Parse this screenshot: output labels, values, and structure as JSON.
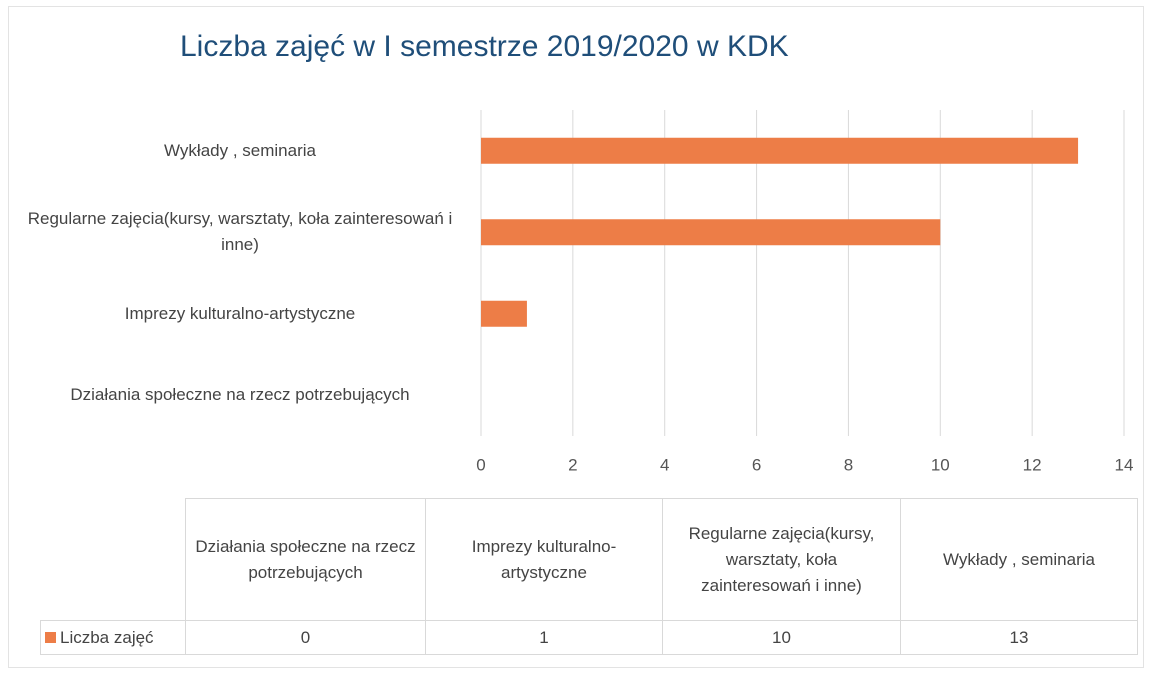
{
  "chart_data": {
    "type": "bar",
    "orientation": "horizontal",
    "title": "Liczba zajęć w I semestrze 2019/2020 w KDK",
    "categories": [
      "Działania społeczne na rzecz potrzebujących",
      "Imprezy kulturalno-artystyczne",
      "Regularne zajęcia(kursy, warsztaty, koła zainteresowań i inne)",
      "Wykłady , seminaria"
    ],
    "series": [
      {
        "name": "Liczba zajęć",
        "color": "#ed7d47",
        "values": [
          0,
          1,
          10,
          13
        ]
      }
    ],
    "xlim": [
      0,
      14
    ],
    "xticks": [
      0,
      2,
      4,
      6,
      8,
      10,
      12,
      14
    ],
    "grid": true,
    "data_table": true
  }
}
